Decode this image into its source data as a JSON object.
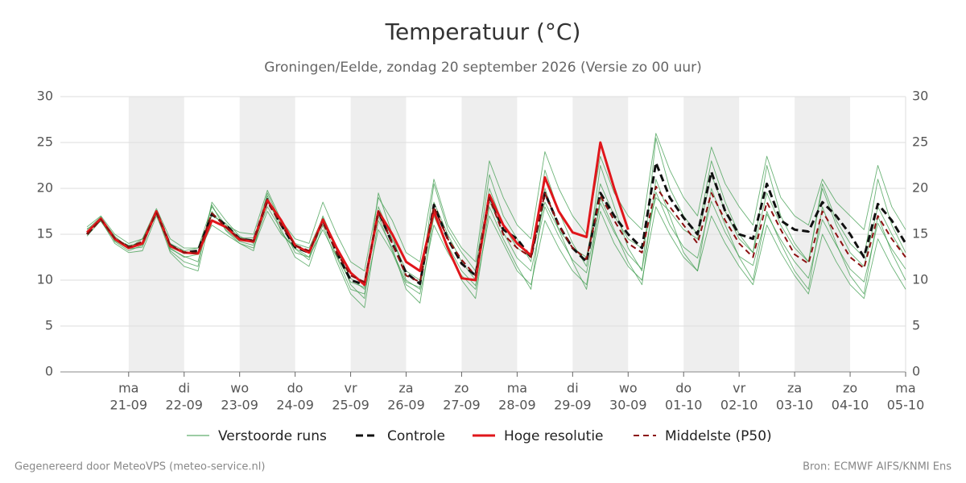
{
  "chart_data": {
    "type": "line",
    "title": "Temperatuur (°C)",
    "subtitle": "Groningen/Eelde, zondag 20 september 2026 (Versie zo 00 uur)",
    "footer_left": "Gegenereerd door MeteoVPS (meteo-service.nl)",
    "footer_right": "Bron: ECMWF AIFS/KNMI Ens",
    "x": [
      -0.75,
      -0.5,
      -0.25,
      0,
      0.25,
      0.5,
      0.75,
      1,
      1.25,
      1.5,
      1.75,
      2,
      2.25,
      2.5,
      2.75,
      3,
      3.25,
      3.5,
      3.75,
      4,
      4.25,
      4.5,
      4.75,
      5,
      5.25,
      5.5,
      5.75,
      6,
      6.25,
      6.5,
      6.75,
      7,
      7.25,
      7.5,
      7.75,
      8,
      8.25,
      8.5,
      8.75,
      9,
      9.25,
      9.5,
      9.75,
      10,
      10.25,
      10.5,
      10.75,
      11,
      11.25,
      11.5,
      11.75,
      12,
      12.25,
      12.5,
      12.75,
      13,
      13.25,
      13.5,
      13.75,
      14
    ],
    "xlim": [
      -1.23,
      14
    ],
    "xticks": [
      {
        "value": 0,
        "label": [
          "ma",
          "21-09"
        ]
      },
      {
        "value": 1,
        "label": [
          "di",
          "22-09"
        ]
      },
      {
        "value": 2,
        "label": [
          "wo",
          "23-09"
        ]
      },
      {
        "value": 3,
        "label": [
          "do",
          "24-09"
        ]
      },
      {
        "value": 4,
        "label": [
          "vr",
          "25-09"
        ]
      },
      {
        "value": 5,
        "label": [
          "za",
          "26-09"
        ]
      },
      {
        "value": 6,
        "label": [
          "zo",
          "27-09"
        ]
      },
      {
        "value": 7,
        "label": [
          "ma",
          "28-09"
        ]
      },
      {
        "value": 8,
        "label": [
          "di",
          "29-09"
        ]
      },
      {
        "value": 9,
        "label": [
          "wo",
          "30-09"
        ]
      },
      {
        "value": 10,
        "label": [
          "do",
          "01-10"
        ]
      },
      {
        "value": 11,
        "label": [
          "vr",
          "02-10"
        ]
      },
      {
        "value": 12,
        "label": [
          "za",
          "03-10"
        ]
      },
      {
        "value": 13,
        "label": [
          "zo",
          "04-10"
        ]
      },
      {
        "value": 14,
        "label": [
          "ma",
          "05-10"
        ]
      }
    ],
    "ylim": [
      0,
      30
    ],
    "yticks": [
      0,
      5,
      10,
      15,
      20,
      25,
      30
    ],
    "grid": true,
    "legend": "bottom",
    "series": [
      {
        "name": "Verstoorde runs",
        "color": "#3a9a4a",
        "style": "thin",
        "members": [
          [
            15.5,
            16.9,
            14.2,
            13.2,
            13.8,
            17.6,
            13.2,
            12.0,
            11.5,
            18.5,
            16.5,
            14.8,
            14.0,
            19.5,
            16.2,
            13.0,
            12.5,
            17.0,
            13.5,
            9.5,
            8.0,
            19.5,
            15.0,
            10.0,
            9.0,
            20.5,
            15.5,
            13.0,
            11.0,
            21.5,
            17.0,
            14.5,
            12.0,
            22.0,
            17.5,
            14.0,
            11.5,
            22.5,
            18.0,
            13.5,
            11.0,
            25.5,
            20.0,
            17.0,
            15.0,
            23.0,
            18.5,
            15.0,
            13.0,
            22.5,
            17.0,
            14.0,
            12.0,
            20.5,
            16.5,
            14.0,
            12.5,
            21.0,
            16.0,
            13.0
          ],
          [
            14.8,
            16.5,
            14.0,
            13.0,
            13.2,
            17.0,
            13.5,
            12.5,
            12.8,
            16.0,
            15.0,
            14.0,
            13.5,
            17.5,
            15.0,
            13.5,
            12.5,
            15.5,
            12.5,
            9.0,
            8.5,
            15.5,
            13.0,
            9.5,
            8.5,
            16.0,
            13.0,
            10.5,
            9.0,
            17.0,
            14.0,
            11.0,
            9.5,
            16.5,
            13.5,
            11.0,
            9.5,
            17.5,
            14.0,
            11.5,
            10.0,
            18.0,
            15.0,
            12.5,
            11.0,
            17.0,
            14.0,
            11.5,
            9.5,
            16.0,
            13.0,
            10.5,
            8.5,
            15.0,
            12.0,
            9.5,
            8.0,
            14.5,
            11.5,
            9.0
          ],
          [
            15.8,
            17.0,
            15.0,
            14.0,
            14.5,
            17.8,
            14.5,
            13.5,
            13.5,
            18.0,
            16.0,
            15.2,
            15.0,
            19.8,
            16.5,
            14.5,
            14.0,
            18.5,
            15.0,
            12.0,
            11.0,
            19.0,
            16.5,
            13.0,
            12.0,
            21.0,
            16.0,
            13.5,
            12.0,
            23.0,
            19.0,
            16.0,
            14.5,
            24.0,
            20.0,
            17.0,
            15.0,
            23.5,
            19.5,
            17.0,
            15.5,
            26.0,
            22.0,
            19.0,
            17.0,
            24.5,
            20.5,
            18.0,
            16.0,
            23.5,
            19.0,
            17.0,
            16.0,
            21.0,
            18.5,
            17.0,
            15.5,
            22.5,
            18.0,
            15.5
          ],
          [
            15.2,
            16.6,
            14.5,
            13.8,
            14.0,
            17.2,
            13.0,
            11.5,
            11.0,
            17.5,
            15.5,
            14.2,
            13.8,
            18.0,
            15.5,
            12.5,
            11.5,
            16.0,
            12.0,
            8.5,
            7.0,
            16.5,
            13.5,
            9.0,
            7.5,
            17.0,
            13.5,
            10.0,
            8.0,
            18.0,
            14.5,
            11.5,
            9.0,
            20.0,
            15.5,
            12.0,
            9.0,
            19.0,
            15.5,
            12.0,
            9.5,
            21.0,
            17.0,
            13.0,
            11.0,
            20.0,
            16.0,
            12.5,
            10.0,
            17.5,
            14.0,
            11.0,
            9.0,
            18.0,
            14.0,
            10.5,
            8.5,
            17.0,
            13.0,
            10.0
          ],
          [
            15.0,
            16.8,
            14.8,
            13.5,
            14.5,
            17.5,
            14.0,
            13.2,
            13.5,
            17.0,
            16.2,
            14.6,
            14.6,
            18.6,
            16.0,
            14.0,
            13.5,
            16.8,
            13.2,
            10.2,
            9.0,
            18.0,
            14.5,
            11.0,
            10.0,
            18.5,
            15.0,
            12.0,
            10.0,
            20.0,
            16.0,
            13.5,
            12.5,
            18.5,
            15.5,
            13.5,
            12.5,
            20.5,
            17.0,
            14.5,
            13.5,
            19.0,
            17.5,
            15.5,
            14.5,
            21.5,
            17.5,
            14.5,
            13.0,
            19.5,
            16.0,
            13.5,
            12.0,
            20.0,
            16.0,
            13.0,
            11.5,
            18.0,
            15.0,
            12.5
          ],
          [
            15.6,
            16.4,
            14.3,
            13.4,
            13.6,
            17.4,
            13.4,
            12.6,
            12.0,
            18.2,
            15.4,
            14.0,
            13.2,
            19.2,
            15.2,
            13.4,
            12.2,
            16.4,
            12.6,
            9.8,
            9.2,
            17.0,
            13.2,
            9.8,
            9.2,
            17.2,
            13.8,
            11.0,
            9.4,
            18.6,
            15.2,
            12.4,
            11.0,
            18.0,
            14.8,
            12.2,
            10.8,
            18.4,
            15.2,
            12.8,
            11.2,
            19.6,
            16.0,
            13.6,
            12.4,
            18.6,
            15.2,
            12.6,
            11.6,
            17.2,
            14.4,
            12.0,
            10.2,
            16.6,
            13.8,
            11.2,
            9.8,
            16.2,
            13.4,
            11.2
          ]
        ]
      },
      {
        "name": "Controle",
        "color": "#111111",
        "style": "dashed",
        "values": [
          15.0,
          16.7,
          14.5,
          13.6,
          14.0,
          17.5,
          13.8,
          13.0,
          13.2,
          17.2,
          16.0,
          14.5,
          14.3,
          18.8,
          16.0,
          13.6,
          13.0,
          16.5,
          13.0,
          10.0,
          9.5,
          17.5,
          14.0,
          10.8,
          9.6,
          18.2,
          14.5,
          11.8,
          10.5,
          19.2,
          15.5,
          14.5,
          12.5,
          19.5,
          16.0,
          13.5,
          12.0,
          19.5,
          17.0,
          15.0,
          13.5,
          22.8,
          19.0,
          16.8,
          15.0,
          21.8,
          17.5,
          15.0,
          14.5,
          20.5,
          16.5,
          15.5,
          15.3,
          18.5,
          17.0,
          15.0,
          12.5,
          18.3,
          16.5,
          14.0
        ]
      },
      {
        "name": "Hoge resolutie",
        "color": "#e0161b",
        "style": "thick",
        "values": [
          15.2,
          16.7,
          14.5,
          13.5,
          14.0,
          17.5,
          13.7,
          13.0,
          12.9,
          16.5,
          15.8,
          14.4,
          14.2,
          18.7,
          16.5,
          13.8,
          13.0,
          16.6,
          13.5,
          10.8,
          9.5,
          17.5,
          15.0,
          12.0,
          11.0,
          17.5,
          13.5,
          10.2,
          10.0,
          19.3,
          16.0,
          14.0,
          12.7,
          21.2,
          17.5,
          15.2,
          14.7,
          25.0,
          20.0,
          15.5,
          null,
          null,
          null,
          null,
          null,
          null,
          null,
          null,
          null,
          null,
          null,
          null,
          null,
          null,
          null,
          null,
          null,
          null,
          null,
          null
        ]
      },
      {
        "name": "Middelste (P50)",
        "color": "#8b1010",
        "style": "dashed-thin",
        "values": [
          15.0,
          16.6,
          14.6,
          13.6,
          14.2,
          17.3,
          13.8,
          13.0,
          13.0,
          17.3,
          15.8,
          14.5,
          14.3,
          18.5,
          16.0,
          13.8,
          13.2,
          16.3,
          13.0,
          10.5,
          9.8,
          17.5,
          14.0,
          10.5,
          9.8,
          18.0,
          14.5,
          12.2,
          10.5,
          19.0,
          15.0,
          13.5,
          12.5,
          19.5,
          16.0,
          13.5,
          12.3,
          19.2,
          16.5,
          14.0,
          13.0,
          20.2,
          18.0,
          16.0,
          14.0,
          19.5,
          16.5,
          14.0,
          12.5,
          18.5,
          15.5,
          12.8,
          11.8,
          17.5,
          15.0,
          12.5,
          11.3,
          17.0,
          14.5,
          12.5
        ]
      }
    ]
  }
}
